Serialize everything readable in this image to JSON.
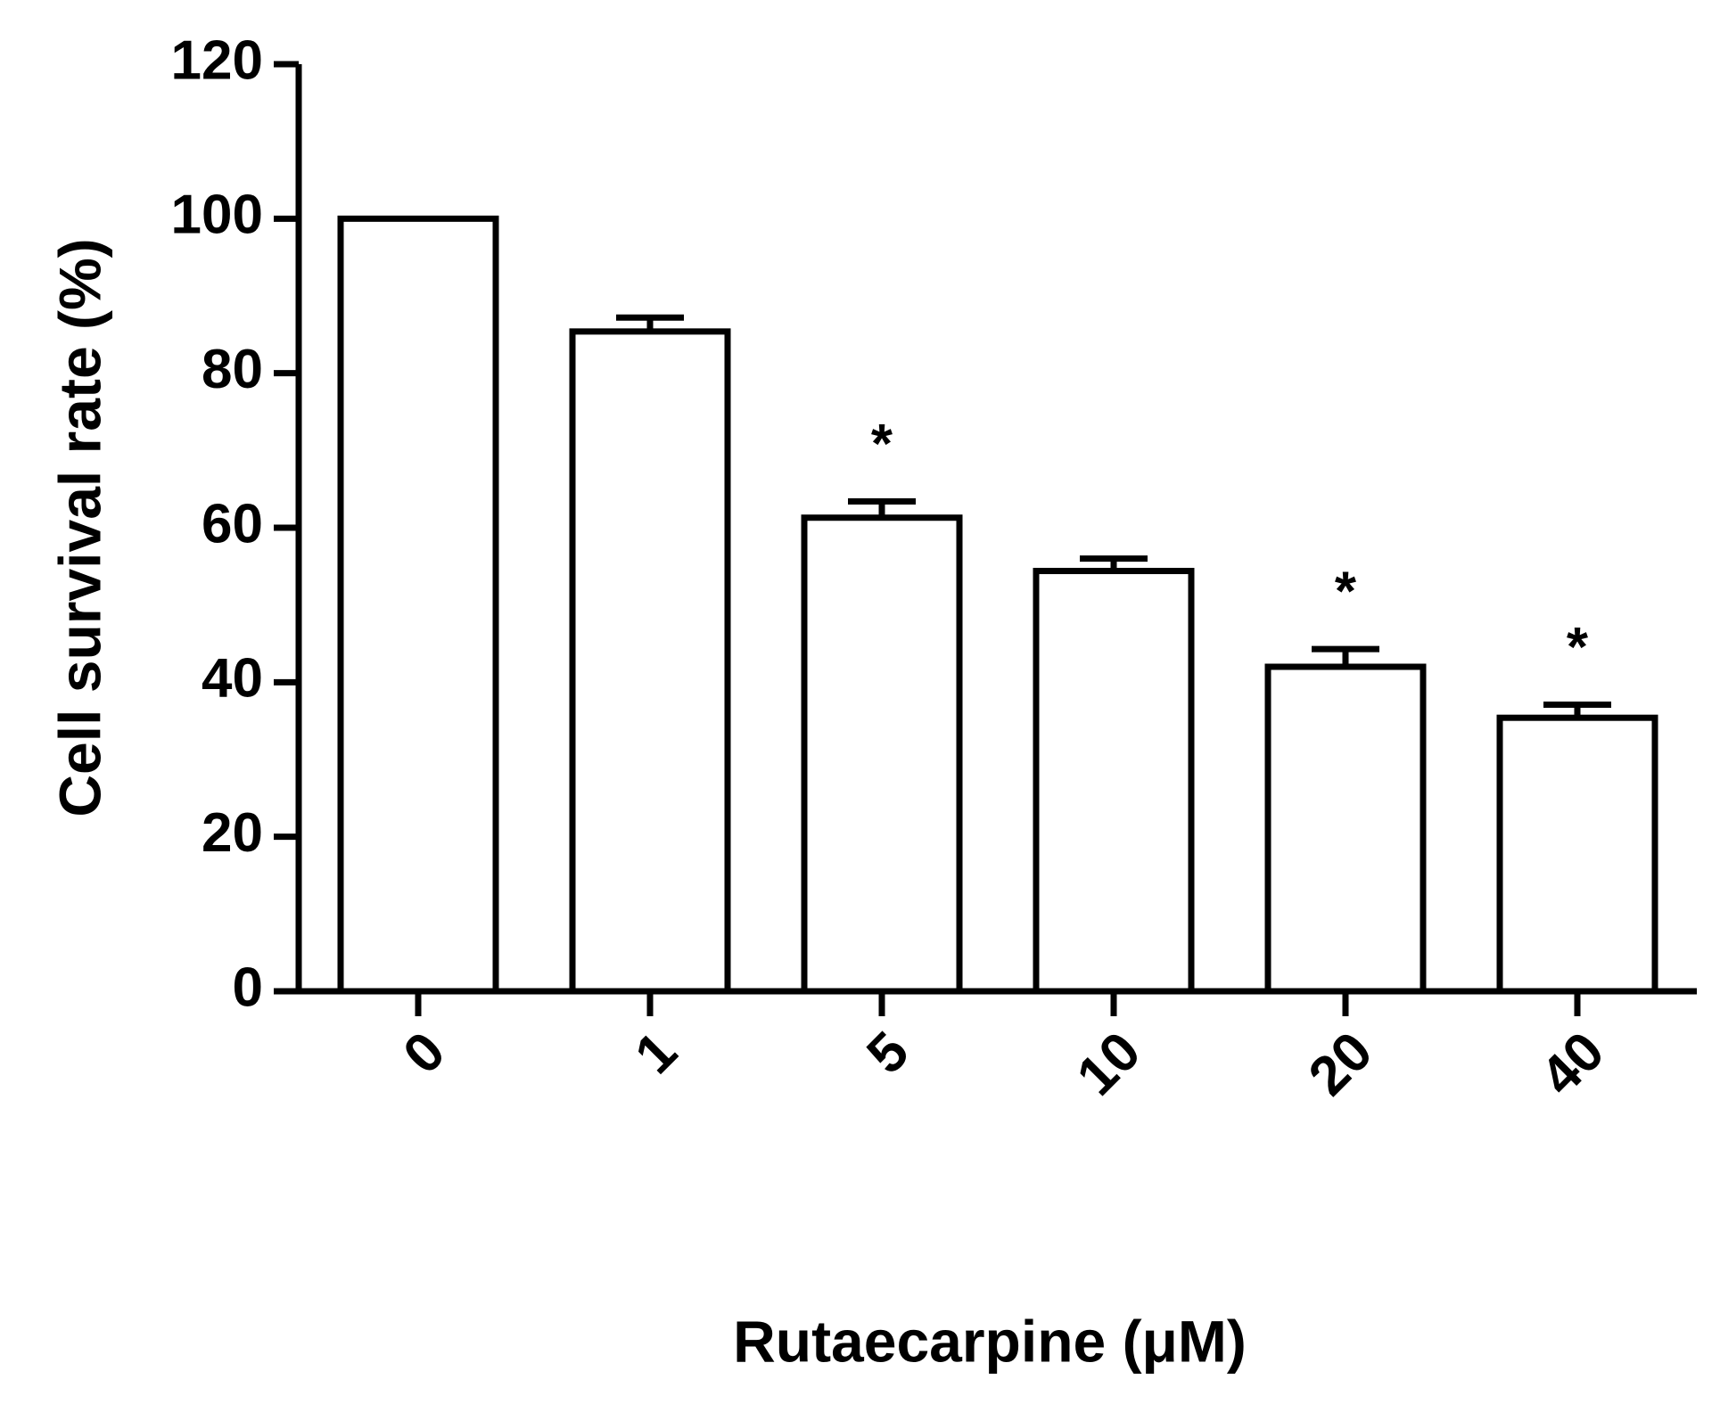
{
  "chart_data": {
    "type": "bar",
    "xlabel": "Rutaecarpine (μM)",
    "ylabel": "Cell survival rate (%)",
    "categories": [
      "0",
      "1",
      "5",
      "10",
      "20",
      "40"
    ],
    "values": [
      100,
      85.4,
      61.3,
      54.4,
      42,
      35.4
    ],
    "errors": [
      0,
      1.8,
      2.1,
      1.6,
      2.3,
      1.7
    ],
    "annotations": [
      null,
      null,
      "*",
      null,
      "*",
      "*"
    ],
    "color": "#ffffff",
    "edgecolor": "#000000",
    "ylim": [
      0,
      120
    ],
    "yticks": [
      0,
      20,
      40,
      60,
      80,
      100,
      120
    ],
    "grid": false
  }
}
